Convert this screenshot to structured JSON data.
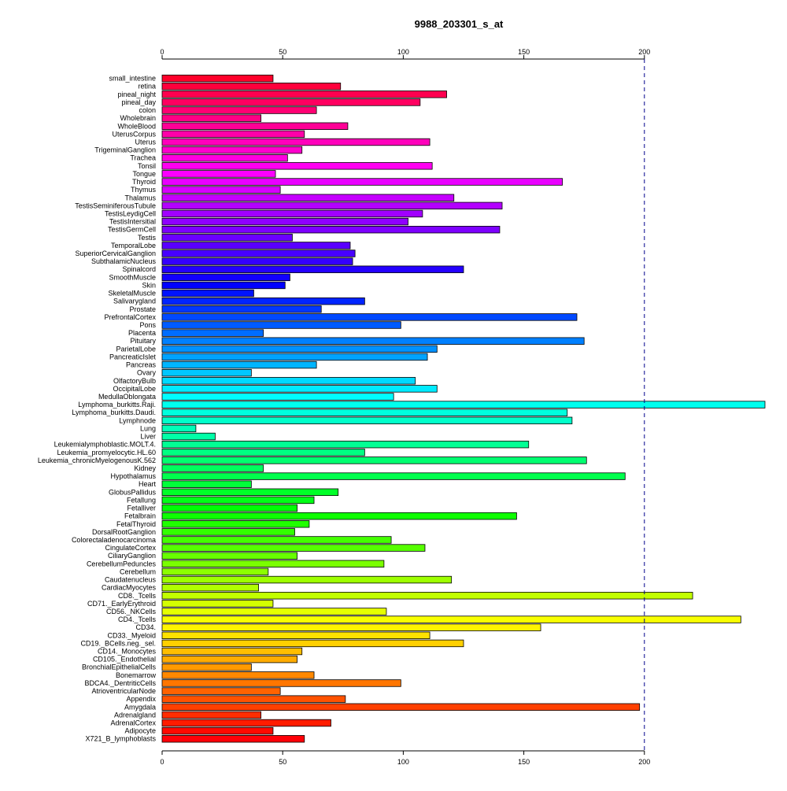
{
  "chart_data": {
    "type": "bar",
    "orientation": "horizontal",
    "title": "9988_203301_s_at",
    "xlabel": "",
    "ylabel": "",
    "xlim": [
      0,
      250
    ],
    "x_ticks": [
      0,
      50,
      100,
      150,
      200
    ],
    "x_tick_labels": [
      "0",
      "50",
      "100",
      "150",
      "200"
    ],
    "ticks_top_and_bottom": true,
    "reference_line": {
      "x": 200,
      "style": "dashed",
      "color": "#00008b"
    },
    "grid": false,
    "legend": "none",
    "color_scheme": "rainbow",
    "categories": [
      "small_intestine",
      "retina",
      "pineal_night",
      "pineal_day",
      "colon",
      "Wholebrain",
      "WholeBlood",
      "UterusCorpus",
      "Uterus",
      "TrigeminalGanglion",
      "Trachea",
      "Tonsil",
      "Tongue",
      "Thyroid",
      "Thymus",
      "Thalamus",
      "TestisSeminiferousTubule",
      "TestisLeydigCell",
      "TestisIntersitial",
      "TestisGermCell",
      "Testis",
      "TemporalLobe",
      "SuperiorCervicalGanglion",
      "SubthalamicNucleus",
      "Spinalcord",
      "SmoothMuscle",
      "Skin",
      "SkeletalMuscle",
      "Salivarygland",
      "Prostate",
      "PrefrontalCortex",
      "Pons",
      "Placenta",
      "Pituitary",
      "ParietalLobe",
      "PancreaticIslet",
      "Pancreas",
      "Ovary",
      "OlfactoryBulb",
      "OccipitalLobe",
      "MedullaOblongata",
      "Lymphoma_burkitts.Raji.",
      "Lymphoma_burkitts.Daudi.",
      "Lymphnode",
      "Lung",
      "Liver",
      "Leukemialymphoblastic.MOLT.4.",
      "Leukemia_promyelocytic.HL.60",
      "Leukemia_chronicMyelogenousK.562",
      "Kidney",
      "Hypothalamus",
      "Heart",
      "GlobusPallidus",
      "Fetallung",
      "Fetalliver",
      "Fetalbrain",
      "FetalThyroid",
      "DorsalRootGanglion",
      "Colorectaladenocarcinoma",
      "CingulateCortex",
      "CiliaryGanglion",
      "CerebellumPeduncles",
      "Cerebellum",
      "Caudatenucleus",
      "CardiacMyocytes",
      "CD8._Tcells",
      "CD71._EarlyErythroid",
      "CD56._NKCells",
      "CD4._Tcells",
      "CD34.",
      "CD33._Myeloid",
      "CD19._BCells.neg._sel.",
      "CD14._Monocytes",
      "CD105._Endothelial",
      "BronchialEpithelialCells",
      "Bonemarrow",
      "BDCA4._DentriticCells",
      "AtrioventricularNode",
      "Appendix",
      "Amygdala",
      "Adrenalgland",
      "AdrenalCortex",
      "Adipocyte",
      "X721_B_lymphoblasts"
    ],
    "values": [
      46,
      74,
      118,
      107,
      64,
      41,
      77,
      59,
      111,
      58,
      52,
      112,
      47,
      166,
      49,
      121,
      141,
      108,
      102,
      140,
      54,
      78,
      80,
      79,
      125,
      53,
      51,
      38,
      84,
      66,
      172,
      99,
      42,
      175,
      114,
      110,
      64,
      37,
      105,
      114,
      96,
      250,
      168,
      170,
      14,
      22,
      152,
      84,
      176,
      42,
      192,
      37,
      73,
      63,
      56,
      147,
      61,
      55,
      95,
      109,
      56,
      92,
      44,
      120,
      40,
      220,
      46,
      93,
      240,
      157,
      111,
      125,
      58,
      56,
      37,
      63,
      99,
      49,
      76,
      198,
      41,
      70,
      46,
      59
    ]
  }
}
